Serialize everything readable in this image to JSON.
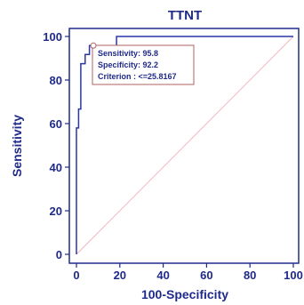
{
  "chart_data": {
    "type": "line",
    "title": "TTNT",
    "xlabel": "100-Specificity",
    "ylabel": "Sensitivity",
    "xlim": [
      0,
      100
    ],
    "ylim": [
      0,
      100
    ],
    "xticks": [
      "0",
      "20",
      "40",
      "60",
      "80",
      "100"
    ],
    "yticks": [
      "0",
      "20",
      "40",
      "60",
      "80",
      "100"
    ],
    "roc": {
      "x": [
        0,
        0,
        1,
        1,
        2,
        2,
        4,
        4,
        6,
        6,
        8,
        8,
        18.5,
        18.5,
        100
      ],
      "y": [
        0,
        58,
        58,
        66.7,
        66.7,
        87.5,
        87.5,
        91.7,
        91.7,
        95.8,
        95.8,
        95.8,
        95.8,
        100,
        100
      ]
    },
    "diagonal": {
      "x": [
        0,
        100
      ],
      "y": [
        0,
        100
      ]
    },
    "criterion_point": {
      "x": 7.8,
      "y": 95.8
    },
    "annotation": {
      "sensitivity": "Sensitivity: 95.8",
      "specificity": "Specificity: 92.2",
      "criterion": "Criterion : <=25.8167"
    },
    "colors": {
      "roc": "#2a36a8",
      "diagonal": "#f0b8c0",
      "axis": "#1f2a8a",
      "box_border": "#b06060"
    }
  }
}
